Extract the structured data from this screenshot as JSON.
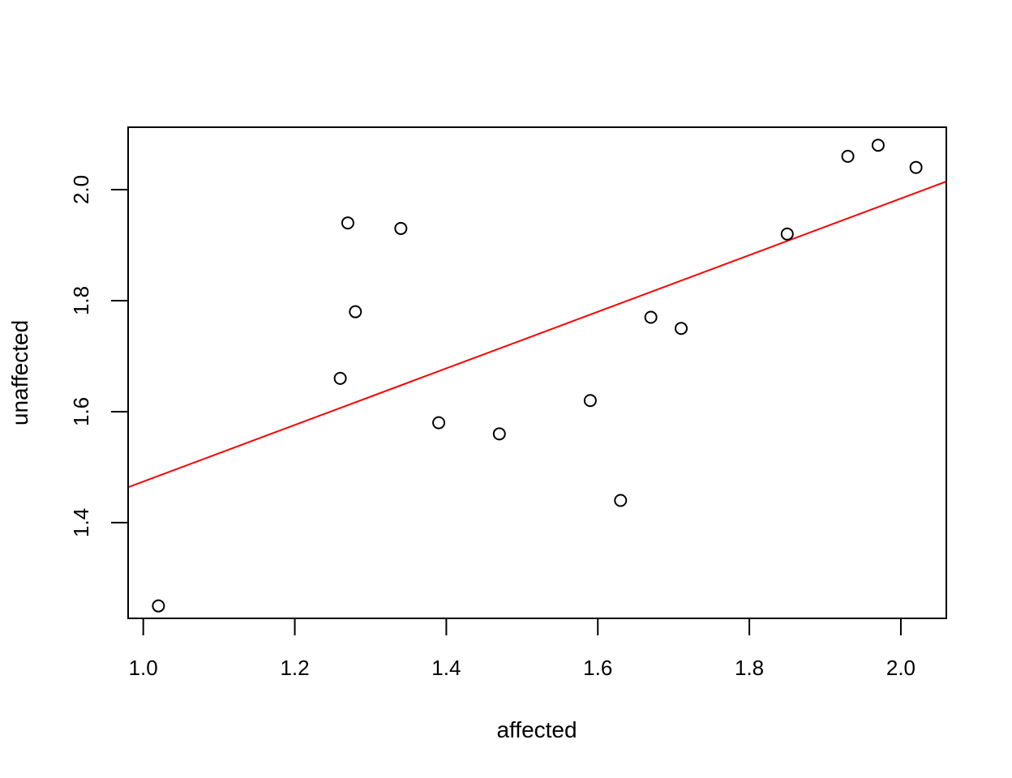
{
  "chart_data": {
    "type": "scatter",
    "title": "",
    "xlabel": "affected",
    "ylabel": "unaffected",
    "xlim": [
      0.98,
      2.06
    ],
    "ylim": [
      1.2276,
      2.1124
    ],
    "x_ticks": [
      1.0,
      1.2,
      1.4,
      1.6,
      1.8,
      2.0
    ],
    "x_tick_labels": [
      "1.0",
      "1.2",
      "1.4",
      "1.6",
      "1.8",
      "2.0"
    ],
    "y_ticks": [
      1.4,
      1.6,
      1.8,
      2.0
    ],
    "y_tick_labels": [
      "1.4",
      "1.6",
      "1.8",
      "2.0"
    ],
    "grid": false,
    "points": [
      {
        "x": 1.02,
        "y": 1.25
      },
      {
        "x": 1.26,
        "y": 1.66
      },
      {
        "x": 1.27,
        "y": 1.94
      },
      {
        "x": 1.28,
        "y": 1.78
      },
      {
        "x": 1.34,
        "y": 1.93
      },
      {
        "x": 1.39,
        "y": 1.58
      },
      {
        "x": 1.47,
        "y": 1.56
      },
      {
        "x": 1.59,
        "y": 1.62
      },
      {
        "x": 1.63,
        "y": 1.44
      },
      {
        "x": 1.67,
        "y": 1.77
      },
      {
        "x": 1.71,
        "y": 1.75
      },
      {
        "x": 1.85,
        "y": 1.92
      },
      {
        "x": 1.93,
        "y": 2.06
      },
      {
        "x": 1.97,
        "y": 2.08
      },
      {
        "x": 2.02,
        "y": 2.04
      }
    ],
    "fit_line": {
      "intercept": 0.964,
      "slope": 0.51,
      "color": "#ff0000"
    },
    "point_style": "open-circle",
    "point_color": "#000000"
  }
}
